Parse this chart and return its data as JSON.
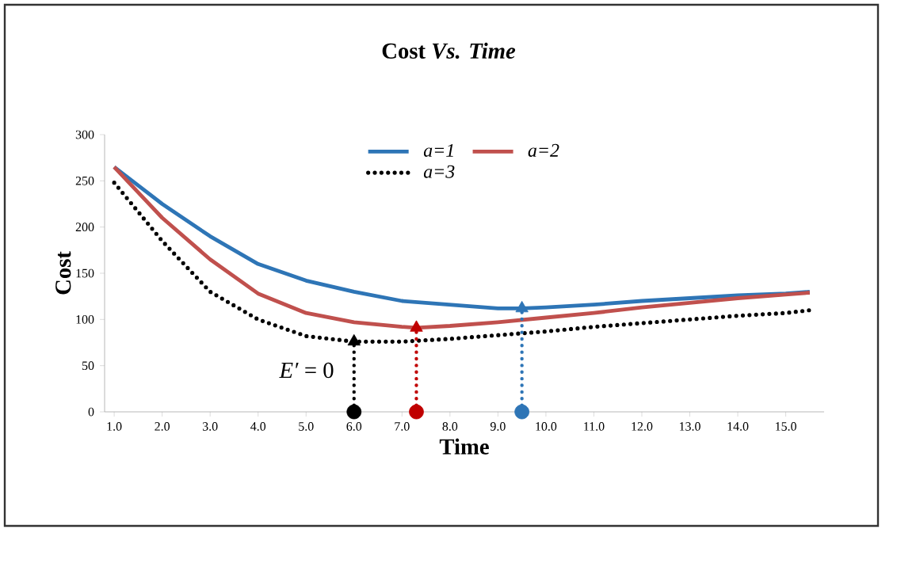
{
  "chart_data": {
    "type": "line",
    "title": "Cost *Vs. Time*",
    "xlabel": "Time",
    "ylabel": "Cost",
    "xlim": [
      0.8,
      15.8
    ],
    "ylim": [
      0,
      300
    ],
    "xticks": [
      {
        "value": 1,
        "label": "1.0"
      },
      {
        "value": 2,
        "label": "2.0"
      },
      {
        "value": 3,
        "label": "3.0"
      },
      {
        "value": 4,
        "label": "4.0"
      },
      {
        "value": 5,
        "label": "5.0"
      },
      {
        "value": 6,
        "label": "6.0"
      },
      {
        "value": 7,
        "label": "7.0"
      },
      {
        "value": 8,
        "label": "8.0"
      },
      {
        "value": 9,
        "label": "9.0"
      },
      {
        "value": 10,
        "label": "10.0"
      },
      {
        "value": 11,
        "label": "11.0"
      },
      {
        "value": 12,
        "label": "12.0"
      },
      {
        "value": 13,
        "label": "13.0"
      },
      {
        "value": 14,
        "label": "14.0"
      },
      {
        "value": 15,
        "label": "15.0"
      }
    ],
    "yticks": [
      0,
      50,
      100,
      150,
      200,
      250,
      300
    ],
    "grid": false,
    "legend": "top",
    "annotations": [
      "*E′* = 0"
    ],
    "series": [
      {
        "name": "a=1",
        "color": "#2e75b6",
        "line_style": "solid",
        "marker": "none",
        "x": [
          1,
          2,
          3,
          4,
          5,
          6,
          7,
          8,
          9,
          9.5,
          10,
          11,
          12,
          13,
          14,
          15,
          15.5
        ],
        "values": [
          265,
          225,
          190,
          160,
          142,
          130,
          120,
          116,
          112,
          112,
          113,
          116,
          120,
          123,
          126,
          128,
          130
        ]
      },
      {
        "name": "a=2",
        "color": "#c0504d",
        "line_style": "solid",
        "marker": "none",
        "x": [
          1,
          2,
          3,
          4,
          5,
          6,
          7,
          7.3,
          8,
          9,
          10,
          11,
          12,
          13,
          14,
          15,
          15.5
        ],
        "values": [
          265,
          210,
          165,
          128,
          107,
          97,
          92,
          91,
          93,
          97,
          102,
          107,
          113,
          118,
          123,
          127,
          129
        ]
      },
      {
        "name": "a=3",
        "color": "#000000",
        "line_style": "dotted",
        "marker": "none",
        "x": [
          1,
          2,
          3,
          4,
          5,
          6,
          7,
          8,
          9,
          10,
          11,
          12,
          13,
          14,
          15,
          15.5
        ],
        "values": [
          248,
          185,
          130,
          100,
          82,
          76,
          76,
          79,
          83,
          87,
          92,
          96,
          100,
          104,
          107,
          110
        ]
      },
      {
        "color": "#000000",
        "line_style": "dotted",
        "marker": "none",
        "x": [
          6,
          6
        ],
        "values": [
          0,
          76
        ]
      },
      {
        "color": "#c00000",
        "line_style": "dotted",
        "marker": "none",
        "x": [
          7.3,
          7.3
        ],
        "values": [
          0,
          91
        ]
      },
      {
        "color": "#2e75b6",
        "line_style": "dotted",
        "marker": "none",
        "x": [
          9.5,
          9.5
        ],
        "values": [
          0,
          112
        ]
      },
      {
        "type": "scatter",
        "marker": "triangle",
        "x": [
          6,
          7.3,
          9.5
        ],
        "values": [
          76,
          91,
          112
        ],
        "colors": [
          "#000000",
          "#c00000",
          "#2e75b6"
        ]
      },
      {
        "type": "scatter",
        "marker": "circle",
        "x": [
          6,
          7.3,
          9.5
        ],
        "values": [
          0,
          0,
          0
        ],
        "colors": [
          "#000000",
          "#c00000",
          "#2e75b6"
        ]
      }
    ]
  }
}
